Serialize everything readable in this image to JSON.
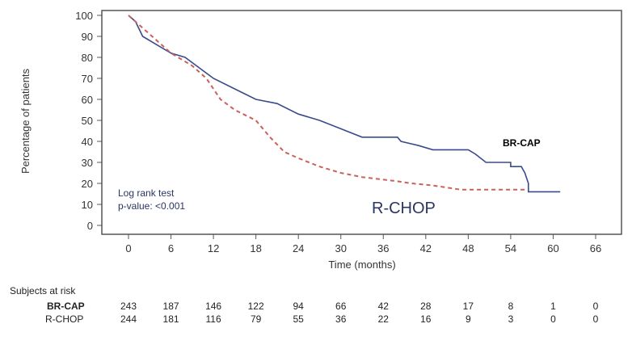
{
  "chart_data": {
    "type": "line",
    "title": "",
    "xlabel": "Time (months)",
    "ylabel": "Percentage of patients",
    "xlim": [
      0,
      66
    ],
    "ylim": [
      0,
      100
    ],
    "xticks": [
      0,
      6,
      12,
      18,
      24,
      30,
      36,
      42,
      48,
      54,
      60,
      66
    ],
    "yticks": [
      0,
      10,
      20,
      30,
      40,
      50,
      60,
      70,
      80,
      90,
      100
    ],
    "grid": false,
    "series": [
      {
        "name": "BR-CAP",
        "color": "#3b4a8c",
        "style": "solid",
        "points": [
          [
            0,
            100
          ],
          [
            1,
            97
          ],
          [
            2,
            90
          ],
          [
            4,
            86
          ],
          [
            6,
            82
          ],
          [
            8,
            80
          ],
          [
            10,
            75
          ],
          [
            12,
            70
          ],
          [
            15,
            65
          ],
          [
            18,
            60
          ],
          [
            21,
            58
          ],
          [
            24,
            53
          ],
          [
            27,
            50
          ],
          [
            30,
            46
          ],
          [
            33,
            42
          ],
          [
            38,
            42
          ],
          [
            38.5,
            40
          ],
          [
            41,
            38
          ],
          [
            43,
            36
          ],
          [
            48,
            36
          ],
          [
            49,
            34
          ],
          [
            50.5,
            30
          ],
          [
            54,
            30
          ],
          [
            54,
            28
          ],
          [
            55.5,
            28
          ],
          [
            56,
            25
          ],
          [
            56.5,
            20
          ],
          [
            56.5,
            16
          ],
          [
            61,
            16
          ]
        ]
      },
      {
        "name": "R-CHOP",
        "color": "#c8625a",
        "style": "dashed",
        "points": [
          [
            0,
            100
          ],
          [
            2,
            94
          ],
          [
            6,
            82
          ],
          [
            9,
            76
          ],
          [
            11,
            70
          ],
          [
            13,
            60
          ],
          [
            15,
            55
          ],
          [
            18,
            50
          ],
          [
            20,
            42
          ],
          [
            22,
            35
          ],
          [
            24,
            32
          ],
          [
            27,
            28
          ],
          [
            30,
            25
          ],
          [
            33,
            23
          ],
          [
            38,
            21
          ],
          [
            40,
            20
          ],
          [
            43,
            19
          ],
          [
            47,
            17
          ],
          [
            56,
            17
          ]
        ]
      }
    ],
    "annotations": {
      "log_rank_title": "Log rank test",
      "p_value": "p-value: <0.001",
      "label_brcap": "BR-CAP",
      "label_rchop": "R-CHOP"
    },
    "risk_table": {
      "title": "Subjects at risk",
      "rows": [
        {
          "name": "BR-CAP",
          "values": [
            243,
            187,
            146,
            122,
            94,
            66,
            42,
            28,
            17,
            8,
            1,
            0
          ]
        },
        {
          "name": "R-CHOP",
          "values": [
            244,
            181,
            116,
            79,
            55,
            36,
            22,
            16,
            9,
            3,
            0,
            0
          ]
        }
      ]
    }
  }
}
